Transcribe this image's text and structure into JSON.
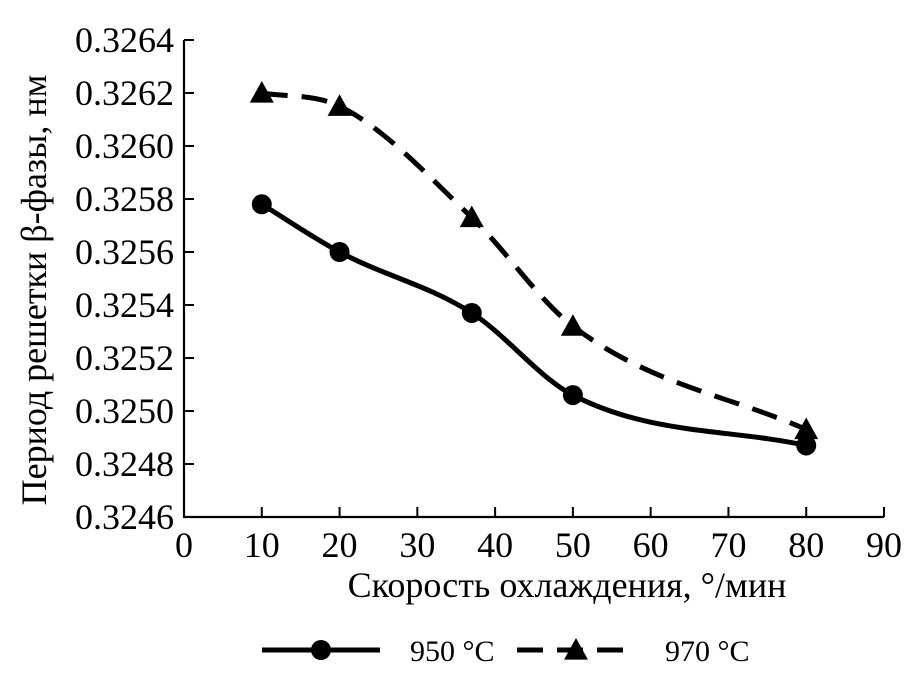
{
  "chart_data": {
    "type": "line",
    "xlabel": "Скорость охлаждения, °/мин",
    "ylabel": "Период решетки β-фазы, нм",
    "xlim": [
      0,
      90
    ],
    "ylim": [
      0.3246,
      0.3264
    ],
    "xticks": [
      0,
      10,
      20,
      30,
      40,
      50,
      60,
      70,
      80,
      90
    ],
    "x_tick_labels": [
      "0",
      "10",
      "20",
      "30",
      "40",
      "50",
      "60",
      "70",
      "80",
      "90"
    ],
    "yticks": [
      0.3246,
      0.3248,
      0.325,
      0.3252,
      0.3254,
      0.3256,
      0.3258,
      0.326,
      0.3262,
      0.3264
    ],
    "y_tick_labels": [
      "0.3246",
      "0.3248",
      "0.3250",
      "0.3252",
      "0.3254",
      "0.3256",
      "0.3258",
      "0.3260",
      "0.3262",
      "0.3264"
    ],
    "grid": false,
    "legend_position": "bottom",
    "series": [
      {
        "name": "950 °C",
        "line_style": "solid",
        "marker": "circle",
        "color": "#000000",
        "x": [
          10,
          20,
          37,
          50,
          80
        ],
        "y": [
          0.32578,
          0.3256,
          0.32537,
          0.32506,
          0.32487
        ]
      },
      {
        "name": "970 °C",
        "line_style": "dashed",
        "marker": "triangle",
        "color": "#000000",
        "x": [
          10,
          20,
          37,
          50,
          80
        ],
        "y": [
          0.3262,
          0.32615,
          0.32573,
          0.32532,
          0.32493
        ]
      }
    ]
  }
}
